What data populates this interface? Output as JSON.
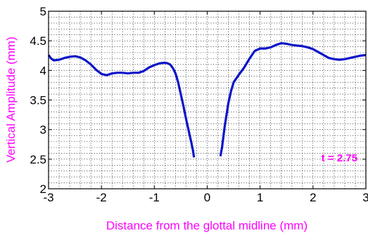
{
  "chart_data": {
    "type": "line",
    "title": "",
    "xlabel": "Distance from the glottal midline (mm)",
    "ylabel": "Vertical Amplitude (mm)",
    "xlim": [
      -3,
      3
    ],
    "ylim": [
      2,
      5
    ],
    "xticks": [
      "-3",
      "-2",
      "-1",
      "0",
      "1",
      "2",
      "3"
    ],
    "yticks": [
      "2",
      "2.5",
      "3",
      "3.5",
      "4",
      "4.5",
      "5"
    ],
    "grid": "dotted, minor every 0.2 mm on x and 0.1 mm on y",
    "annotation": {
      "text": "t = 2.75",
      "x": 2.5,
      "y": 2.52
    },
    "colors": {
      "line": "#0a14c8",
      "labels": "#ff00ff",
      "annotation": "#ff00ff",
      "grid": "#000000"
    },
    "series": [
      {
        "segment": "left",
        "x": [
          -3.0,
          -2.95,
          -2.9,
          -2.8,
          -2.7,
          -2.6,
          -2.5,
          -2.4,
          -2.3,
          -2.2,
          -2.1,
          -2.0,
          -1.9,
          -1.8,
          -1.7,
          -1.6,
          -1.5,
          -1.4,
          -1.3,
          -1.2,
          -1.1,
          -1.0,
          -0.9,
          -0.8,
          -0.75,
          -0.7,
          -0.65,
          -0.6,
          -0.55,
          -0.5,
          -0.45,
          -0.4,
          -0.35,
          -0.3,
          -0.27,
          -0.25
        ],
        "y": [
          4.26,
          4.2,
          4.17,
          4.18,
          4.21,
          4.23,
          4.24,
          4.22,
          4.17,
          4.1,
          4.01,
          3.94,
          3.92,
          3.95,
          3.96,
          3.96,
          3.95,
          3.96,
          3.96,
          3.99,
          4.05,
          4.09,
          4.12,
          4.13,
          4.12,
          4.1,
          4.04,
          3.95,
          3.8,
          3.6,
          3.4,
          3.18,
          2.98,
          2.78,
          2.65,
          2.53
        ]
      },
      {
        "segment": "right",
        "x": [
          0.25,
          0.28,
          0.33,
          0.4,
          0.45,
          0.5,
          0.6,
          0.7,
          0.8,
          0.9,
          1.0,
          1.1,
          1.2,
          1.3,
          1.4,
          1.5,
          1.6,
          1.7,
          1.8,
          1.9,
          2.0,
          2.1,
          2.2,
          2.3,
          2.4,
          2.5,
          2.6,
          2.7,
          2.8,
          2.9,
          3.0
        ],
        "y": [
          2.55,
          2.7,
          3.05,
          3.45,
          3.65,
          3.8,
          3.93,
          4.05,
          4.2,
          4.33,
          4.37,
          4.37,
          4.39,
          4.43,
          4.46,
          4.45,
          4.43,
          4.42,
          4.41,
          4.39,
          4.36,
          4.31,
          4.26,
          4.21,
          4.19,
          4.18,
          4.19,
          4.21,
          4.23,
          4.25,
          4.26
        ]
      }
    ]
  }
}
